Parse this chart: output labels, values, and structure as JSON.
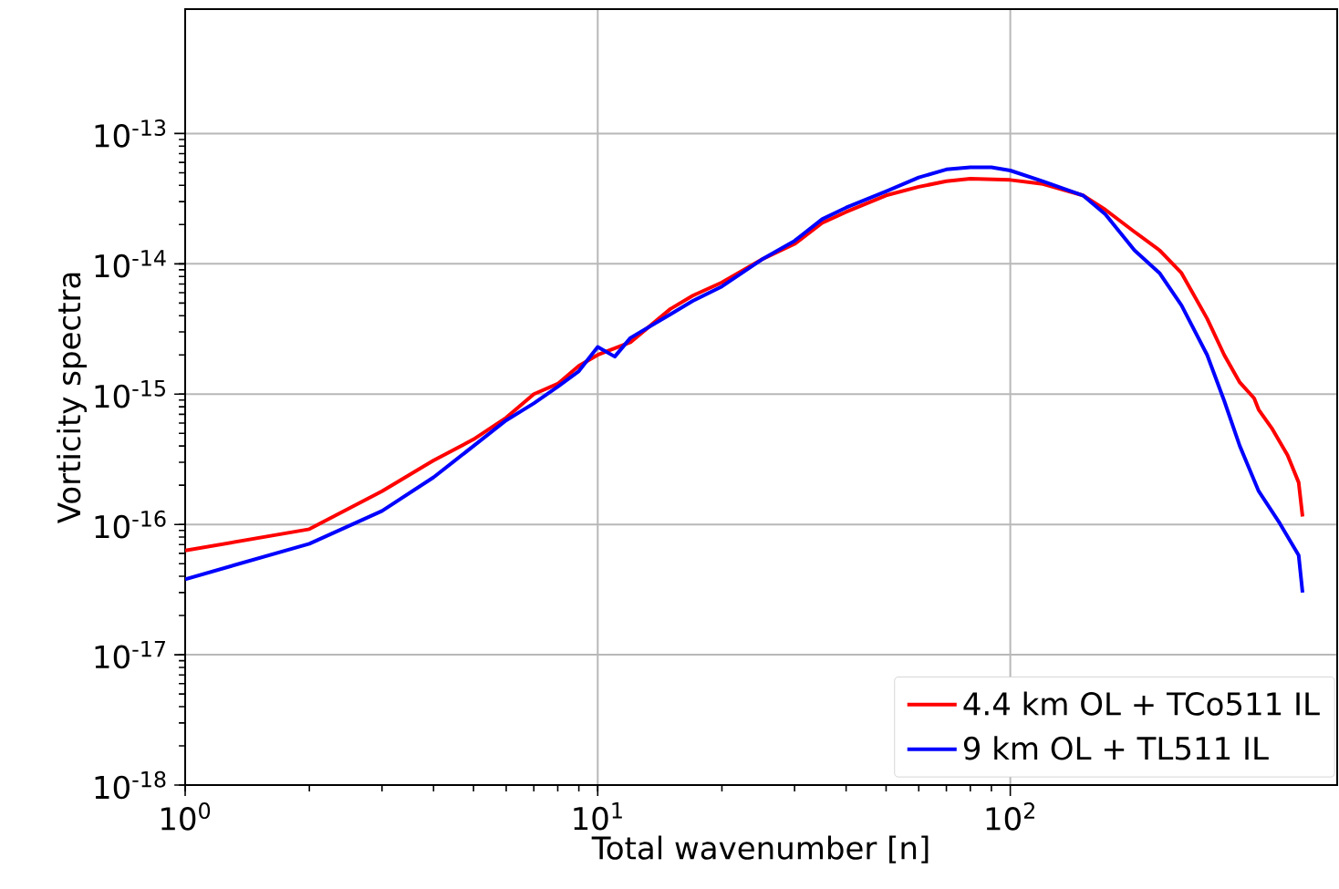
{
  "chart_data": {
    "type": "line",
    "xlabel": "Total wavenumber [n]",
    "ylabel": "Vorticity spectra",
    "log": "xy",
    "grid": true,
    "legend": "bottom right",
    "line_style": "solid",
    "marker": "none",
    "xlim": [
      1,
      620
    ],
    "ylim": [
      1e-18,
      9e-13
    ],
    "xticks": [
      {
        "value": 1,
        "label": "10$^{0}$"
      },
      {
        "value": 10,
        "label": "10$^{1}$"
      },
      {
        "value": 100,
        "label": "10$^{2}$"
      }
    ],
    "yticks": [
      {
        "value": 1e-18,
        "label": "10$^{-18}$"
      },
      {
        "value": 1e-17,
        "label": "10$^{-17}$"
      },
      {
        "value": 1e-16,
        "label": "10$^{-16}$"
      },
      {
        "value": 1e-15,
        "label": "10$^{-15}$"
      },
      {
        "value": 1e-14,
        "label": "10$^{-14}$"
      },
      {
        "value": 1e-13,
        "label": "10$^{-13}$"
      }
    ],
    "series": [
      {
        "name": "4.4 km OL + TCo511 IL",
        "color": "#ff0000",
        "x": [
          1,
          2,
          3,
          4,
          5,
          6,
          7,
          8,
          9,
          10,
          12,
          15,
          17,
          20,
          25,
          30,
          35,
          40,
          50,
          60,
          70,
          80,
          100,
          120,
          150,
          170,
          200,
          230,
          260,
          300,
          330,
          360,
          390,
          400,
          430,
          470,
          500,
          511
        ],
        "values": [
          6.3e-17,
          9.2e-17,
          1.8e-16,
          3.1e-16,
          4.5e-16,
          6.6e-16,
          1e-15,
          1.2e-15,
          1.65e-15,
          2e-15,
          2.5e-15,
          4.5e-15,
          5.7e-15,
          7.2e-15,
          1.08e-14,
          1.42e-14,
          2.06e-14,
          2.5e-14,
          3.35e-14,
          3.9e-14,
          4.3e-14,
          4.5e-14,
          4.4e-14,
          4.1e-14,
          3.35e-14,
          2.6e-14,
          1.76e-14,
          1.27e-14,
          8.5e-15,
          3.8e-15,
          2e-15,
          1.23e-15,
          9.3e-16,
          7.6e-16,
          5.5e-16,
          3.4e-16,
          2.1e-16,
          1.15e-16
        ]
      },
      {
        "name": "9 km OL + TL511 IL",
        "color": "#0000ff",
        "x": [
          1,
          2,
          3,
          4,
          5,
          6,
          7,
          8,
          9,
          10,
          11,
          12,
          15,
          17,
          20,
          25,
          30,
          35,
          40,
          50,
          60,
          70,
          80,
          90,
          100,
          120,
          150,
          170,
          200,
          230,
          260,
          300,
          330,
          360,
          400,
          450,
          500,
          511
        ],
        "values": [
          3.8e-17,
          7.1e-17,
          1.27e-16,
          2.3e-16,
          4e-16,
          6.3e-16,
          8.5e-16,
          1.14e-15,
          1.5e-15,
          2.3e-15,
          1.94e-15,
          2.7e-15,
          4.1e-15,
          5.2e-15,
          6.7e-15,
          1.08e-14,
          1.5e-14,
          2.2e-14,
          2.7e-14,
          3.6e-14,
          4.6e-14,
          5.3e-14,
          5.5e-14,
          5.5e-14,
          5.2e-14,
          4.3e-14,
          3.35e-14,
          2.4e-14,
          1.27e-14,
          8.5e-15,
          4.8e-15,
          2e-15,
          8.9e-16,
          4e-16,
          1.8e-16,
          1.02e-16,
          5.8e-17,
          3e-17
        ]
      }
    ]
  }
}
